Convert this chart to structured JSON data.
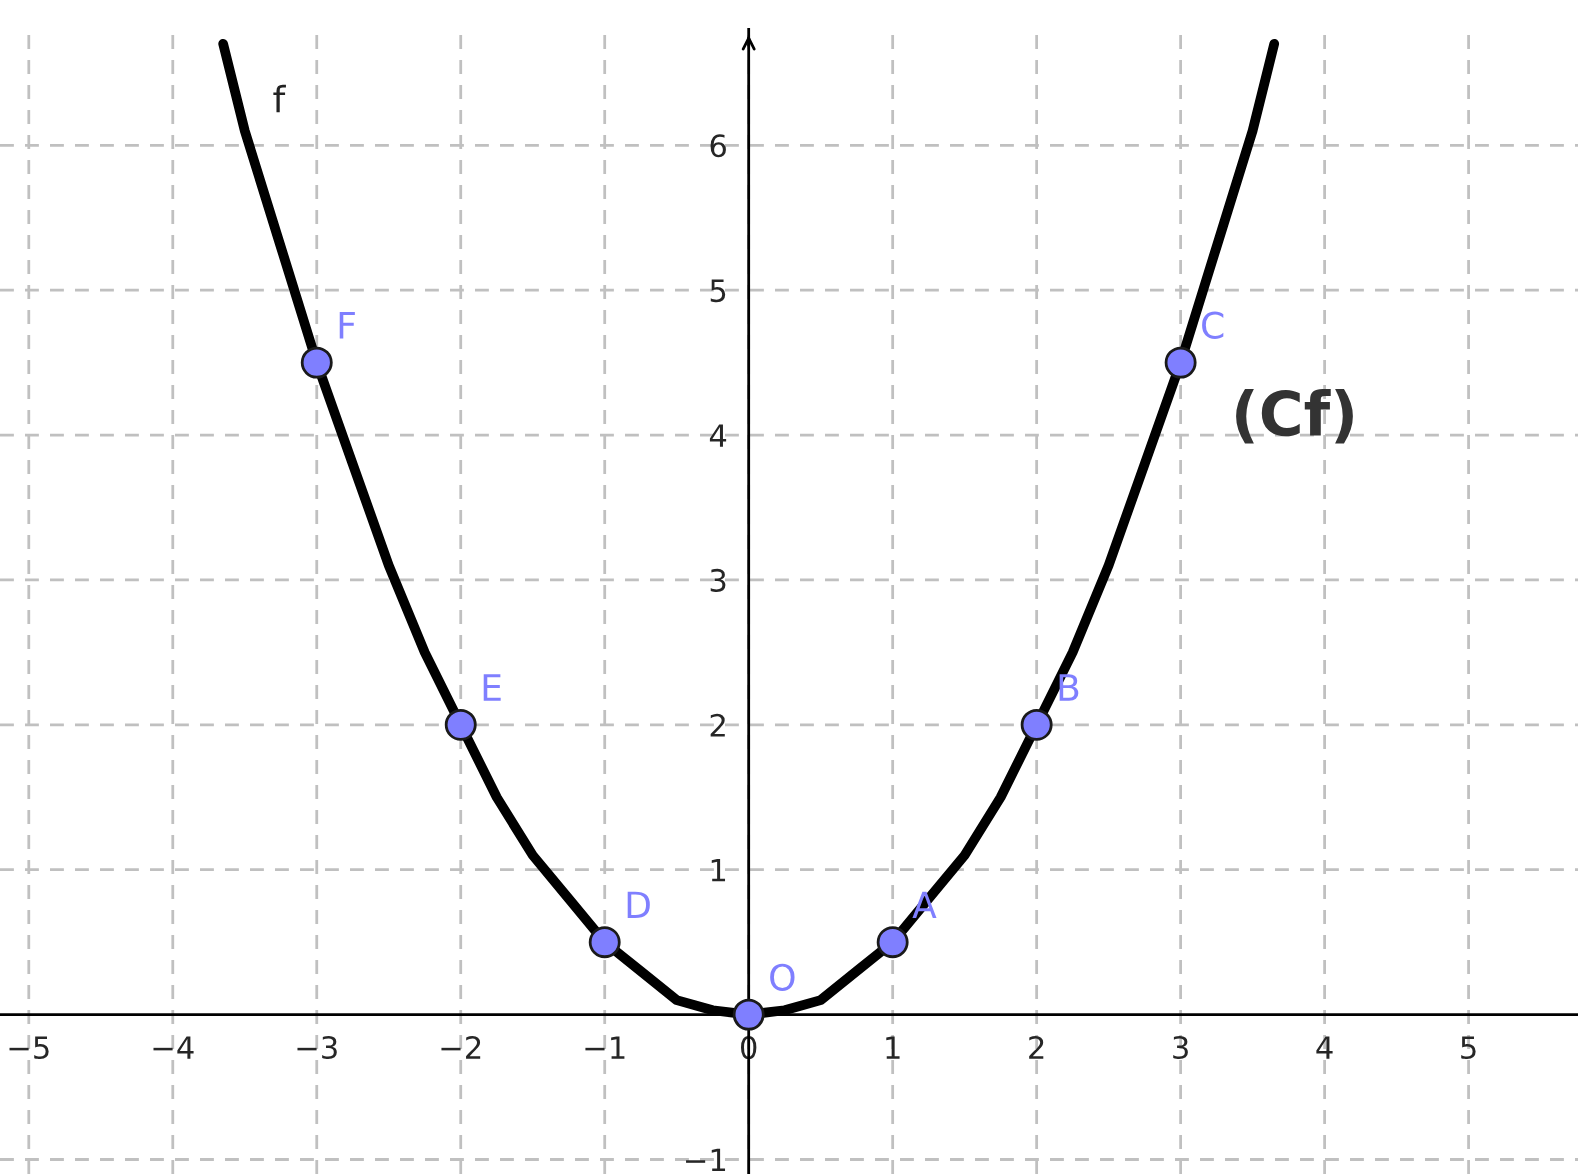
{
  "chart_data": {
    "type": "line",
    "series": [
      {
        "color": "#000000",
        "marker": "none",
        "x": [
          -3.65,
          -3.5,
          -3.25,
          -3,
          -2.75,
          -2.5,
          -2.25,
          -2,
          -1.75,
          -1.5,
          -1.25,
          -1,
          -0.75,
          -0.5,
          -0.25,
          0,
          0.25,
          0.5,
          0.75,
          1,
          1.25,
          1.5,
          1.75,
          2,
          2.25,
          2.5,
          2.75,
          3,
          3.25,
          3.5,
          3.65
        ],
        "values": [
          6.7,
          6.1,
          5.3,
          4.5,
          3.8,
          3.1,
          2.5,
          2,
          1.5,
          1.1,
          0.8,
          0.5,
          0.3,
          0.1,
          0.03,
          0,
          0.03,
          0.1,
          0.3,
          0.5,
          0.8,
          1.1,
          1.5,
          2,
          2.5,
          3.1,
          3.8,
          4.5,
          5.3,
          6.1,
          6.7
        ]
      },
      {
        "type": "scatter",
        "color": "#7f7fff",
        "marker": "circle",
        "x": [
          0,
          1,
          2,
          3,
          -1,
          -2,
          -3
        ],
        "values": [
          0,
          0.5,
          2,
          4.5,
          0.5,
          2,
          4.5
        ]
      }
    ],
    "xlim": [
      -5.2,
      5.76
    ],
    "ylim": [
      -1.1,
      6.8
    ],
    "xticks": [
      {
        "value": -5,
        "label": "−5"
      },
      {
        "value": -4,
        "label": "−4"
      },
      {
        "value": -3,
        "label": "−3"
      },
      {
        "value": -2,
        "label": "−2"
      },
      {
        "value": -1,
        "label": "−1"
      },
      0,
      1,
      2,
      3,
      4,
      5
    ],
    "yticks": [
      {
        "value": -1,
        "label": "−1"
      },
      1,
      2,
      3,
      4,
      5,
      6
    ],
    "grid": true,
    "annotations": [
      {
        "text": "O",
        "x": 0,
        "y": 0
      },
      {
        "text": "A",
        "x": 1,
        "y": 0.5
      },
      {
        "text": "B",
        "x": 2,
        "y": 2
      },
      {
        "text": "C",
        "x": 3,
        "y": 4.5
      },
      {
        "text": "D",
        "x": -1,
        "y": 0.5
      },
      {
        "text": "E",
        "x": -2,
        "y": 2
      },
      {
        "text": "F",
        "x": -3,
        "y": 4.5
      },
      {
        "text": "f",
        "x": -3.5,
        "y": 6.1
      },
      "(Cf)"
    ]
  }
}
